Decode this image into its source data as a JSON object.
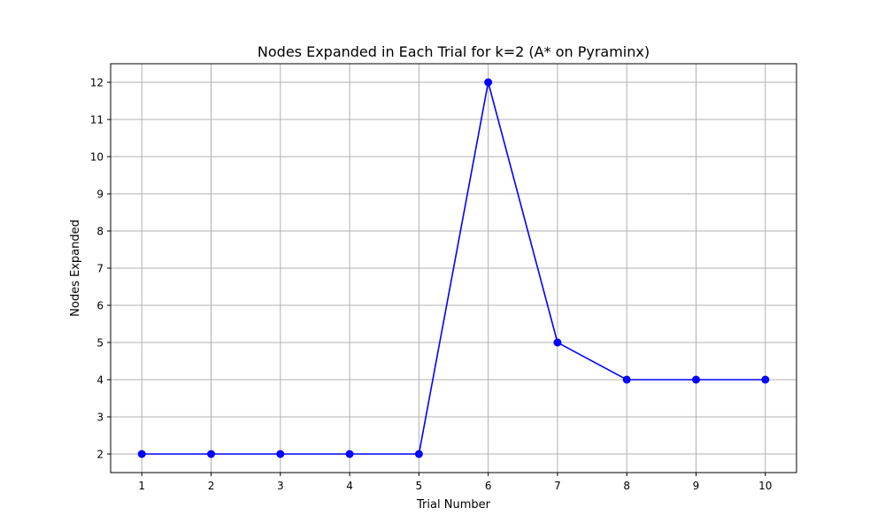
{
  "chart_data": {
    "type": "line",
    "title": "Nodes Expanded in Each Trial for k=2 (A* on Pyraminx)",
    "xlabel": "Trial Number",
    "ylabel": "Nodes Expanded",
    "x": [
      1,
      2,
      3,
      4,
      5,
      6,
      7,
      8,
      9,
      10
    ],
    "series": [
      {
        "values": [
          2,
          2,
          2,
          2,
          2,
          12,
          5,
          4,
          4,
          4
        ]
      }
    ],
    "xlim": [
      0.55,
      10.45
    ],
    "ylim": [
      1.5,
      12.5
    ],
    "xticks": [
      1,
      2,
      3,
      4,
      5,
      6,
      7,
      8,
      9,
      10
    ],
    "yticks": [
      2,
      3,
      4,
      5,
      6,
      7,
      8,
      9,
      10,
      11,
      12
    ],
    "grid": true,
    "marker": "circle",
    "line_color": "#0000ff"
  }
}
